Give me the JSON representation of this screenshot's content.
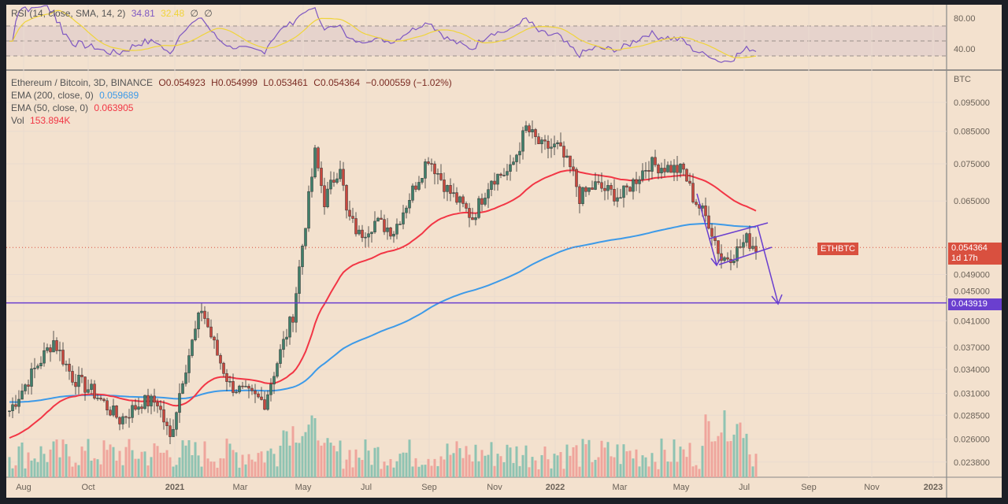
{
  "rsi_legend": {
    "label": "RSI (14, close, SMA, 14, 2)",
    "value": "34.81",
    "sma": "32.48",
    "extra1": "∅",
    "extra2": "∅"
  },
  "legend": {
    "symbol": "Ethereum / Bitcoin, 3D, BINANCE",
    "open": "O0.054923",
    "high": "H0.054999",
    "low": "L0.053461",
    "close": "C0.054364",
    "change": "−0.000559 (−1.02%)",
    "ema200_label": "EMA (200, close, 0)",
    "ema200_value": "0.059689",
    "ema50_label": "EMA (50, close, 0)",
    "ema50_value": "0.063905",
    "vol_label": "Vol",
    "vol_value": "153.894K"
  },
  "price_tag": {
    "symbol": "ETHBTC",
    "price": "0.054364",
    "countdown": "1d 17h"
  },
  "level_tag": "0.043919",
  "colors": {
    "up": "#4f9a82",
    "down": "#e0524a",
    "ema200": "#3d9ae8",
    "ema50": "#f23645",
    "rsi": "#7e57c2",
    "rsi_sma": "#f0d43a",
    "drawing": "#6a3fcf"
  },
  "chart_data": {
    "type": "candlestick",
    "title": "Ethereum / Bitcoin, 3D, BINANCE",
    "y_scale": "log",
    "ylabel": "BTC",
    "ylim": [
      0.0225,
      0.1
    ],
    "y_ticks": [
      "0.095000",
      "0.085000",
      "0.075000",
      "0.065000",
      "0.049000",
      "0.045000",
      "0.041000",
      "0.037000",
      "0.034000",
      "0.031000",
      "0.028500",
      "0.026000",
      "0.023800"
    ],
    "rsi_ticks": [
      "80.00",
      "40.00"
    ],
    "x_ticks": [
      "Aug",
      "Oct",
      "2021",
      "Mar",
      "May",
      "Jul",
      "Sep",
      "Nov",
      "2022",
      "Mar",
      "May",
      "Jul",
      "Sep",
      "Nov",
      "2023"
    ],
    "horizontal_level": 0.043919,
    "close_path": [
      [
        0,
        0.029
      ],
      [
        8,
        0.034
      ],
      [
        14,
        0.038
      ],
      [
        20,
        0.033
      ],
      [
        27,
        0.031
      ],
      [
        35,
        0.028
      ],
      [
        42,
        0.03
      ],
      [
        47,
        0.03
      ],
      [
        51,
        0.026
      ],
      [
        55,
        0.033
      ],
      [
        61,
        0.043
      ],
      [
        66,
        0.036
      ],
      [
        70,
        0.032
      ],
      [
        75,
        0.031
      ],
      [
        81,
        0.03
      ],
      [
        85,
        0.035
      ],
      [
        90,
        0.042
      ],
      [
        94,
        0.06
      ],
      [
        97,
        0.078
      ],
      [
        100,
        0.065
      ],
      [
        105,
        0.075
      ],
      [
        107,
        0.062
      ],
      [
        111,
        0.057
      ],
      [
        116,
        0.06
      ],
      [
        122,
        0.058
      ],
      [
        127,
        0.066
      ],
      [
        133,
        0.077
      ],
      [
        139,
        0.068
      ],
      [
        147,
        0.061
      ],
      [
        153,
        0.071
      ],
      [
        159,
        0.073
      ],
      [
        164,
        0.086
      ],
      [
        169,
        0.08
      ],
      [
        174,
        0.08
      ],
      [
        179,
        0.072
      ],
      [
        181,
        0.066
      ],
      [
        186,
        0.069
      ],
      [
        194,
        0.066
      ],
      [
        203,
        0.075
      ],
      [
        214,
        0.073
      ],
      [
        217,
        0.066
      ],
      [
        222,
        0.06
      ],
      [
        226,
        0.052
      ],
      [
        230,
        0.053
      ],
      [
        234,
        0.056
      ],
      [
        237,
        0.0544
      ]
    ]
  }
}
